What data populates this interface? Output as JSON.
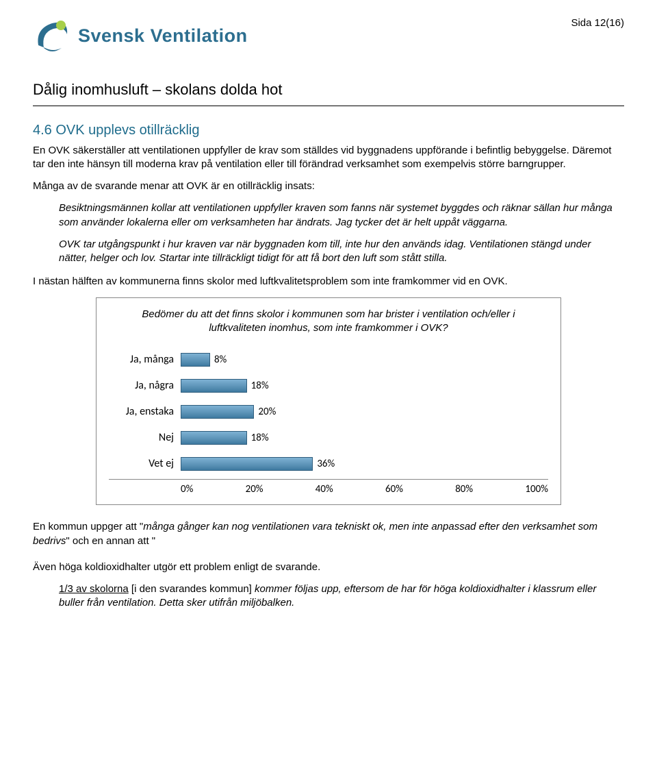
{
  "header": {
    "page_label": "Sida 12(16)",
    "brand": "Svensk Ventilation",
    "logo_colors": {
      "swoosh": "#2c6e8f",
      "dot": "#a7cf4a"
    }
  },
  "doc_title": "Dålig inomhusluft – skolans dolda hot",
  "section": {
    "heading": "4.6  OVK upplevs otillräcklig",
    "p1": "En OVK säkerställer att ventilationen uppfyller de krav som ställdes vid byggnadens uppförande i befintlig bebyggelse. Däremot tar den inte hänsyn till moderna krav på ventilation eller till förändrad verksamhet som exempelvis större barngrupper.",
    "p2": "Många av de svarande menar att OVK är en otillräcklig insats:",
    "q1": "Besiktningsmännen kollar att ventilationen uppfyller kraven som fanns när systemet byggdes och räknar sällan hur många som använder lokalerna eller om verksamheten har ändrats. Jag tycker det är helt uppåt väggarna.",
    "q2": "OVK tar utgångspunkt i hur kraven var när byggnaden kom till, inte hur den används idag. Ventilationen stängd under nätter, helger och lov. Startar inte tillräckligt tidigt för att få bort den luft som stått stilla.",
    "p3": "I nästan hälften av kommunerna finns skolor med luftkvalitetsproblem som inte framkommer vid en OVK."
  },
  "chart": {
    "type": "bar-horizontal",
    "title": "Bedömer du att det finns skolor i kommunen som har brister i ventilation och/eller i luftkvaliteten inomhus, som inte framkommer i OVK?",
    "categories": [
      "Ja, många",
      "Ja, några",
      "Ja, enstaka",
      "Nej",
      "Vet ej"
    ],
    "values_pct": [
      8,
      18,
      20,
      18,
      36
    ],
    "value_labels": [
      "8%",
      "18%",
      "20%",
      "18%",
      "36%"
    ],
    "xlim": [
      0,
      100
    ],
    "xtick_step": 20,
    "xtick_labels": [
      "0%",
      "20%",
      "40%",
      "60%",
      "80%",
      "100%"
    ],
    "bar_colors": [
      "#5d94b8",
      "#5d94b8",
      "#5d94b8",
      "#5d94b8",
      "#5d94b8"
    ],
    "border_color": "#888888",
    "label_fontsize": 16,
    "background_color": "#ffffff"
  },
  "after": {
    "p4_pre": "En kommun uppger att \"",
    "p4_quote": "många gånger kan nog ventilationen vara tekniskt ok, men inte anpassad efter den verksamhet som bedrivs",
    "p4_post": "\" och en annan att \"",
    "p5": "Även höga koldioxidhalter utgör ett problem enligt de svarande.",
    "q3_underlined": "1/3 av skolorna",
    "q3_bracket": " [i den svarandes kommun] ",
    "q3_rest": "kommer följas upp, eftersom de har för höga koldioxidhalter i klassrum eller buller från ventilation. Detta sker utifrån miljöbalken."
  }
}
